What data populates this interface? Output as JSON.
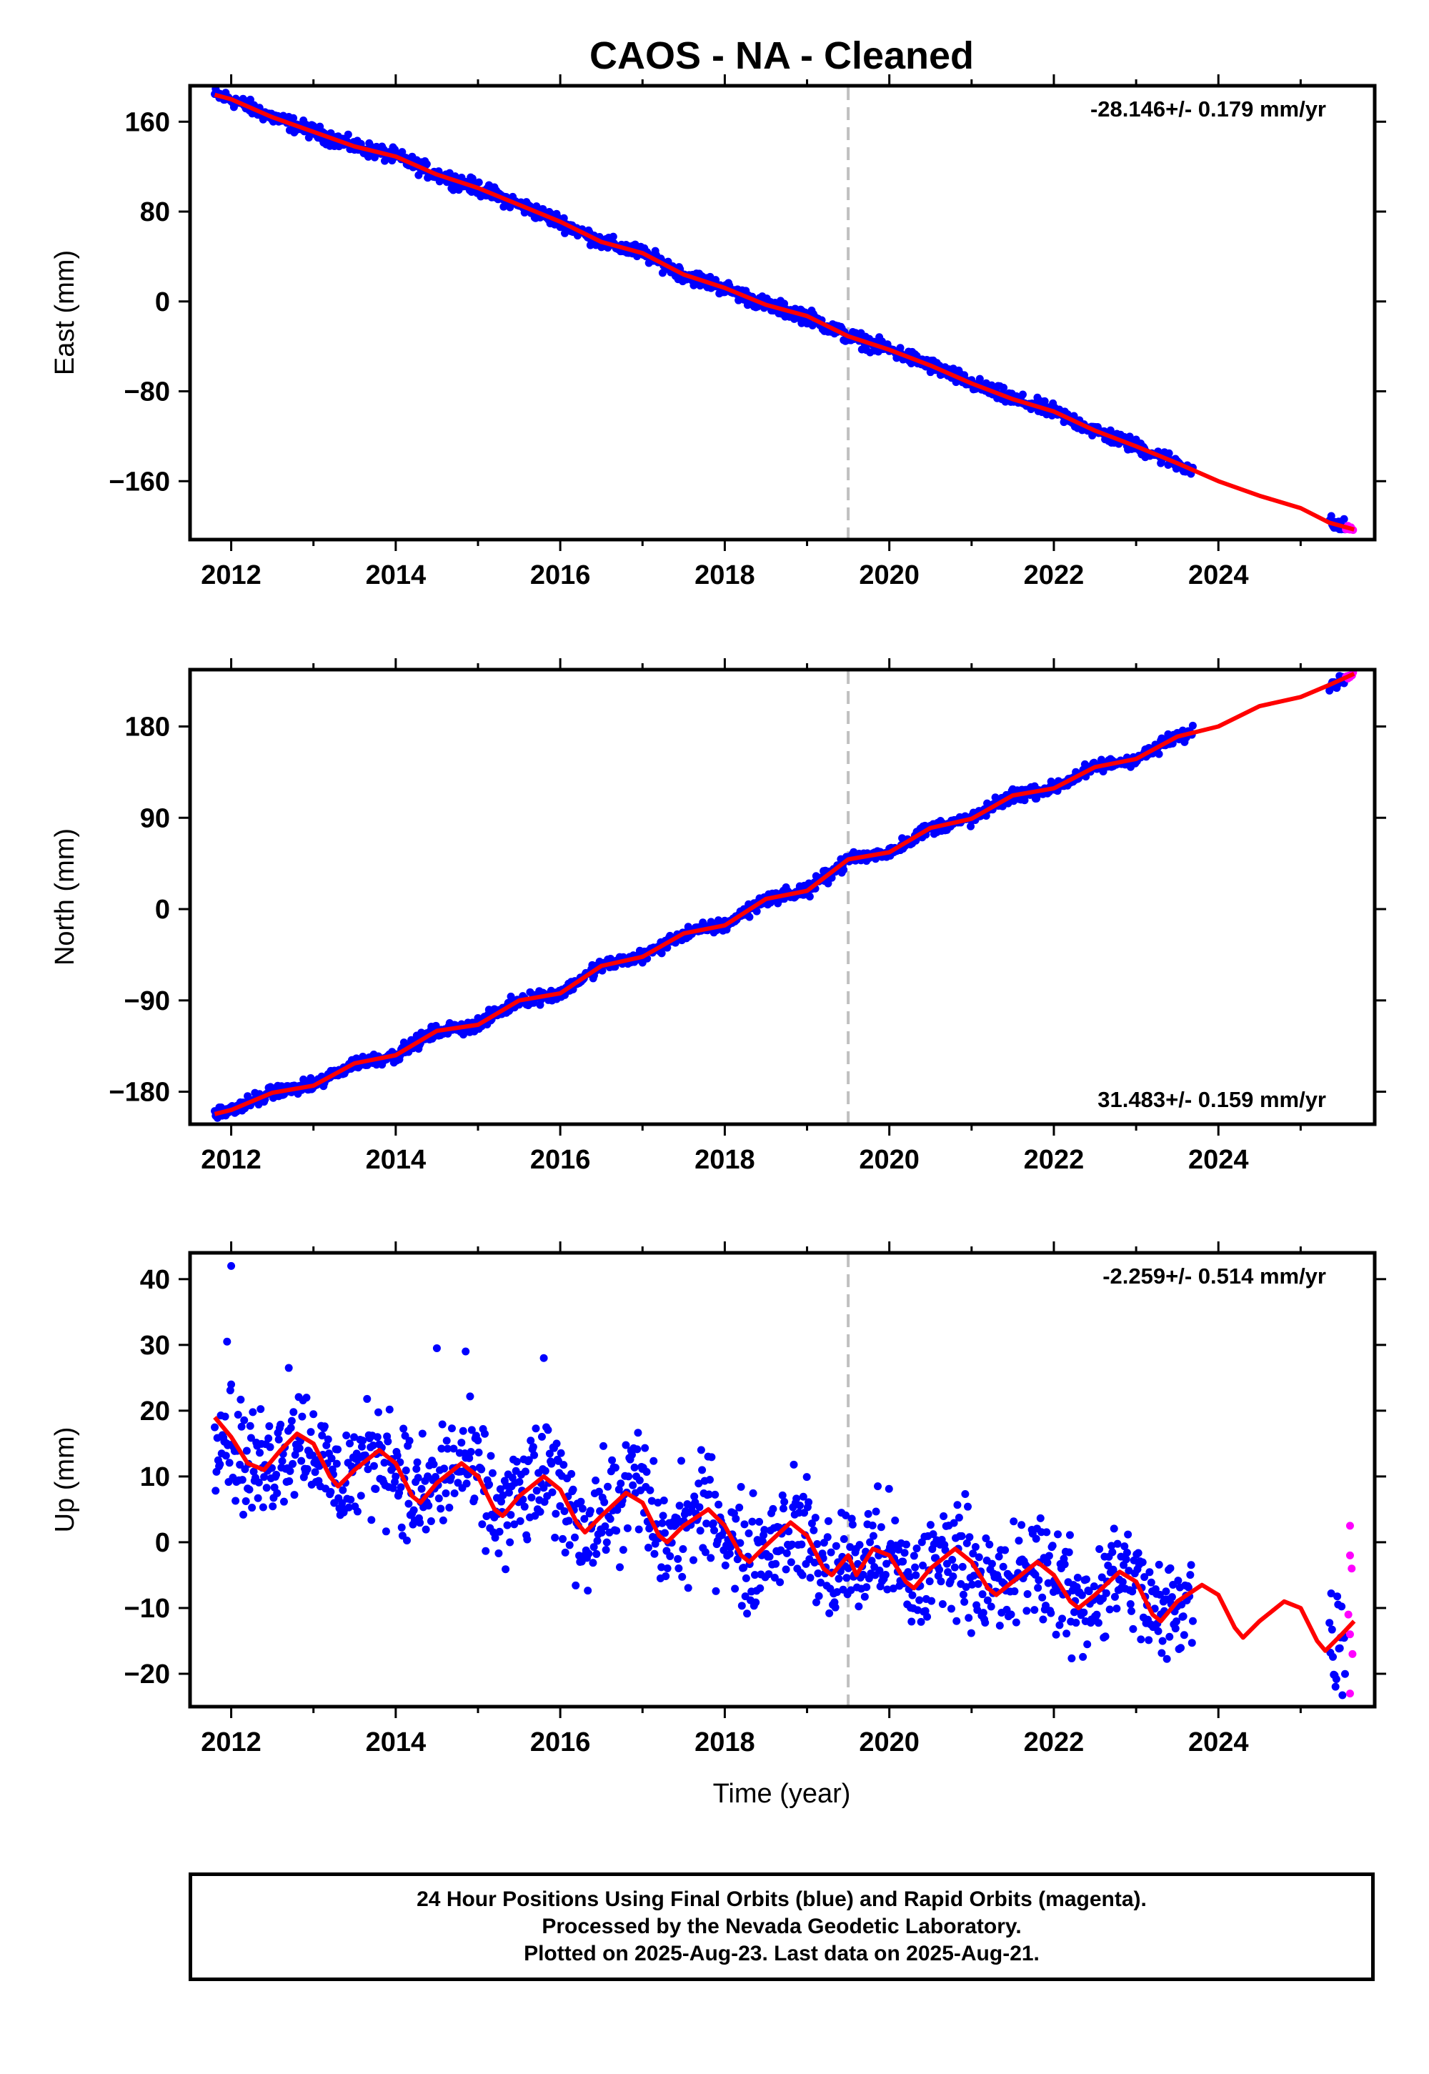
{
  "chart_data": {
    "title": "CAOS  - NA - Cleaned",
    "xlabel": "Time (year)",
    "xlim": [
      2011.5,
      2025.9
    ],
    "xticks": [
      2012,
      2014,
      2016,
      2018,
      2020,
      2022,
      2024
    ],
    "event_line_x": 2019.5,
    "colors": {
      "final_orbits": "#0000ff",
      "rapid_orbits": "#ff00ff",
      "model": "#ff0000",
      "event_line": "#c0c0c0"
    },
    "panels": [
      {
        "type": "scatter",
        "ylabel": "East (mm)",
        "ylim": [
          -212,
          192
        ],
        "yticks": [
          160,
          80,
          0,
          -80,
          -160
        ],
        "rate_label": "-28.146+/- 0.179 mm/yr",
        "rate_position": "top-right",
        "model_points": [
          [
            2011.8,
            184
          ],
          [
            2012.0,
            180
          ],
          [
            2012.5,
            164
          ],
          [
            2013.0,
            151
          ],
          [
            2013.5,
            138
          ],
          [
            2014.0,
            129
          ],
          [
            2014.5,
            113
          ],
          [
            2015.0,
            101
          ],
          [
            2015.5,
            86
          ],
          [
            2016.0,
            71
          ],
          [
            2016.5,
            53
          ],
          [
            2017.0,
            43
          ],
          [
            2017.5,
            24
          ],
          [
            2018.0,
            12
          ],
          [
            2018.5,
            -3
          ],
          [
            2019.0,
            -13
          ],
          [
            2019.5,
            -31
          ],
          [
            2020.0,
            -43
          ],
          [
            2020.5,
            -57
          ],
          [
            2021.0,
            -73
          ],
          [
            2021.5,
            -87
          ],
          [
            2022.0,
            -98
          ],
          [
            2022.5,
            -115
          ],
          [
            2023.0,
            -129
          ],
          [
            2023.5,
            -144
          ],
          [
            2024.0,
            -160
          ],
          [
            2024.5,
            -173
          ],
          [
            2025.0,
            -184
          ],
          [
            2025.35,
            -197
          ],
          [
            2025.65,
            -203
          ]
        ],
        "final_segments": [
          [
            2011.8,
            2023.7
          ],
          [
            2025.35,
            2025.55
          ]
        ],
        "rapid_range": [
          2025.55,
          2025.65
        ]
      },
      {
        "type": "scatter",
        "ylabel": "North (mm)",
        "ylim": [
          -212,
          236
        ],
        "yticks": [
          180,
          90,
          0,
          -90,
          -180
        ],
        "rate_label": "31.483+/- 0.159 mm/yr",
        "rate_position": "bottom-right",
        "model_points": [
          [
            2011.8,
            -202
          ],
          [
            2012.0,
            -198
          ],
          [
            2012.5,
            -181
          ],
          [
            2013.0,
            -174
          ],
          [
            2013.5,
            -152
          ],
          [
            2014.0,
            -144
          ],
          [
            2014.5,
            -120
          ],
          [
            2015.0,
            -114
          ],
          [
            2015.5,
            -90
          ],
          [
            2016.0,
            -83
          ],
          [
            2016.5,
            -56
          ],
          [
            2017.0,
            -47
          ],
          [
            2017.5,
            -24
          ],
          [
            2018.0,
            -16
          ],
          [
            2018.5,
            10
          ],
          [
            2019.0,
            18
          ],
          [
            2019.5,
            49
          ],
          [
            2020.0,
            56
          ],
          [
            2020.5,
            80
          ],
          [
            2021.0,
            89
          ],
          [
            2021.5,
            112
          ],
          [
            2022.0,
            119
          ],
          [
            2022.5,
            140
          ],
          [
            2023.0,
            148
          ],
          [
            2023.5,
            170
          ],
          [
            2024.0,
            180
          ],
          [
            2024.5,
            200
          ],
          [
            2025.0,
            209
          ],
          [
            2025.35,
            221
          ],
          [
            2025.65,
            232
          ]
        ],
        "final_segments": [
          [
            2011.8,
            2023.7
          ],
          [
            2025.35,
            2025.55
          ]
        ],
        "rapid_range": [
          2025.55,
          2025.65
        ]
      },
      {
        "type": "scatter",
        "ylabel": "Up (mm)",
        "ylim": [
          -25,
          44
        ],
        "yticks": [
          40,
          30,
          20,
          10,
          0,
          -10,
          -20
        ],
        "rate_label": "-2.259+/- 0.514 mm/yr",
        "rate_position": "top-right",
        "model_points": [
          [
            2011.8,
            19
          ],
          [
            2012.0,
            16
          ],
          [
            2012.2,
            12
          ],
          [
            2012.4,
            11
          ],
          [
            2012.6,
            14
          ],
          [
            2012.8,
            16.5
          ],
          [
            2013.0,
            15
          ],
          [
            2013.2,
            10
          ],
          [
            2013.3,
            8.5
          ],
          [
            2013.5,
            11
          ],
          [
            2013.8,
            14
          ],
          [
            2014.0,
            12
          ],
          [
            2014.2,
            7
          ],
          [
            2014.3,
            6
          ],
          [
            2014.5,
            9
          ],
          [
            2014.8,
            12
          ],
          [
            2015.0,
            10
          ],
          [
            2015.2,
            5
          ],
          [
            2015.3,
            4
          ],
          [
            2015.5,
            7
          ],
          [
            2015.8,
            10
          ],
          [
            2016.0,
            8
          ],
          [
            2016.2,
            3
          ],
          [
            2016.3,
            1.5
          ],
          [
            2016.5,
            4
          ],
          [
            2016.8,
            7.5
          ],
          [
            2017.0,
            6
          ],
          [
            2017.2,
            1
          ],
          [
            2017.3,
            0
          ],
          [
            2017.5,
            2.5
          ],
          [
            2017.8,
            5
          ],
          [
            2018.0,
            2.5
          ],
          [
            2018.2,
            -2
          ],
          [
            2018.3,
            -3
          ],
          [
            2018.5,
            -0.5
          ],
          [
            2018.8,
            3
          ],
          [
            2019.0,
            1
          ],
          [
            2019.2,
            -4
          ],
          [
            2019.3,
            -5
          ],
          [
            2019.5,
            -2
          ],
          [
            2019.6,
            -5
          ],
          [
            2019.8,
            -1
          ],
          [
            2020.0,
            -2
          ],
          [
            2020.2,
            -6
          ],
          [
            2020.3,
            -7
          ],
          [
            2020.5,
            -4
          ],
          [
            2020.8,
            -1
          ],
          [
            2021.0,
            -3
          ],
          [
            2021.2,
            -7
          ],
          [
            2021.3,
            -8
          ],
          [
            2021.5,
            -6
          ],
          [
            2021.8,
            -3
          ],
          [
            2022.0,
            -5
          ],
          [
            2022.2,
            -9
          ],
          [
            2022.3,
            -10
          ],
          [
            2022.5,
            -8
          ],
          [
            2022.8,
            -4.5
          ],
          [
            2023.0,
            -6
          ],
          [
            2023.2,
            -11
          ],
          [
            2023.3,
            -12
          ],
          [
            2023.5,
            -9
          ],
          [
            2023.8,
            -6.5
          ],
          [
            2024.0,
            -8
          ],
          [
            2024.2,
            -13
          ],
          [
            2024.3,
            -14.5
          ],
          [
            2024.5,
            -12
          ],
          [
            2024.8,
            -9
          ],
          [
            2025.0,
            -10
          ],
          [
            2025.2,
            -15
          ],
          [
            2025.3,
            -16.5
          ],
          [
            2025.5,
            -14
          ],
          [
            2025.65,
            -12
          ]
        ],
        "final_segments": [
          [
            2011.8,
            2023.7
          ],
          [
            2025.35,
            2025.55
          ]
        ],
        "rapid_range": [
          2025.55,
          2025.65
        ],
        "rapid_points": [
          [
            2025.6,
            2.5
          ],
          [
            2025.6,
            -2
          ],
          [
            2025.62,
            -4
          ],
          [
            2025.58,
            -11
          ],
          [
            2025.6,
            -14
          ],
          [
            2025.63,
            -17
          ],
          [
            2025.6,
            -23
          ]
        ],
        "outlier_points": [
          [
            2012.0,
            42
          ],
          [
            2011.95,
            30.5
          ],
          [
            2014.5,
            29.5
          ],
          [
            2014.85,
            29
          ],
          [
            2015.8,
            28
          ],
          [
            2012.7,
            26.5
          ]
        ]
      }
    ]
  },
  "footer": {
    "line1": "24 Hour Positions Using Final Orbits (blue) and Rapid Orbits (magenta).",
    "line2": "Processed by the Nevada Geodetic Laboratory.",
    "line3": "Plotted on 2025-Aug-23. Last data on 2025-Aug-21."
  }
}
